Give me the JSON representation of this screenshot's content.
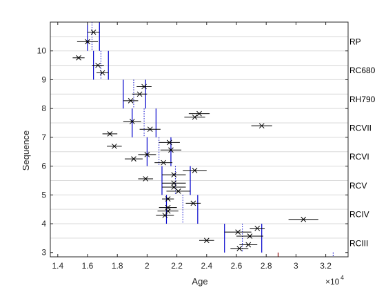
{
  "chart_data": {
    "type": "scatter",
    "xlabel": "Age",
    "ylabel": "Sequence",
    "x_multiplier_label": "×10",
    "x_multiplier_exp": "4",
    "xlim": [
      1.35,
      3.35
    ],
    "ylim": [
      2.85,
      11.0
    ],
    "x_ticks": [
      1.4,
      1.6,
      1.8,
      2.0,
      2.2,
      2.4,
      2.6,
      2.8,
      3.0,
      3.2
    ],
    "x_tick_labels": [
      "1.4",
      "1.6",
      "1.8",
      "2",
      "2.2",
      "2.4",
      "2.6",
      "2.8",
      "3",
      "3.2"
    ],
    "y_ticks": [
      3,
      4,
      5,
      6,
      7,
      8,
      9,
      10
    ],
    "y_tick_labels": [
      "3",
      "4",
      "5",
      "6",
      "7",
      "8",
      "9",
      "10"
    ],
    "grid": "horizontal",
    "sequences": [
      {
        "name": "RP",
        "y": 10.32,
        "boundary": 11.0,
        "lines_solid": [
          1.6,
          1.68
        ],
        "lines_dotted": [
          1.63
        ]
      },
      {
        "name": "RC680",
        "y": 9.32,
        "boundary": 10.0,
        "lines_solid": [
          1.64,
          1.74
        ],
        "lines_dotted": [
          1.69
        ]
      },
      {
        "name": "RH790",
        "y": 8.32,
        "boundary": 9.0,
        "lines_solid": [
          1.84,
          1.99
        ],
        "lines_dotted": [
          1.91
        ]
      },
      {
        "name": "RCVII",
        "y": 7.32,
        "boundary": 8.0,
        "lines_solid": [
          1.9,
          2.06
        ],
        "lines_dotted": [
          1.98
        ]
      },
      {
        "name": "RCVI",
        "y": 6.32,
        "boundary": 7.0,
        "lines_solid": [
          2.0,
          2.16
        ],
        "lines_dotted": [
          2.08
        ]
      },
      {
        "name": "RCV",
        "y": 5.32,
        "boundary": 6.0,
        "lines_solid": [
          2.1,
          2.29
        ],
        "lines_dotted": [
          2.19
        ]
      },
      {
        "name": "RCIV",
        "y": 4.32,
        "boundary": 5.0,
        "lines_solid": [
          2.13,
          2.34
        ],
        "lines_dotted": [
          2.24
        ]
      },
      {
        "name": "RCIII",
        "y": 3.32,
        "boundary": 4.0,
        "lines_solid": [
          2.52,
          2.77
        ],
        "lines_dotted": [
          2.64
        ]
      }
    ],
    "points": [
      {
        "x": 1.64,
        "y": 10.65,
        "err": 0.04
      },
      {
        "x": 1.6,
        "y": 10.32,
        "err": 0.07
      },
      {
        "x": 1.54,
        "y": 9.76,
        "err": 0.04
      },
      {
        "x": 1.67,
        "y": 9.5,
        "err": 0.04
      },
      {
        "x": 1.7,
        "y": 9.24,
        "err": 0.04
      },
      {
        "x": 1.98,
        "y": 8.76,
        "err": 0.05
      },
      {
        "x": 1.95,
        "y": 8.5,
        "err": 0.05
      },
      {
        "x": 1.89,
        "y": 8.27,
        "err": 0.05
      },
      {
        "x": 2.35,
        "y": 7.82,
        "err": 0.07
      },
      {
        "x": 2.32,
        "y": 7.7,
        "err": 0.07
      },
      {
        "x": 2.77,
        "y": 7.4,
        "err": 0.07
      },
      {
        "x": 2.02,
        "y": 7.28,
        "err": 0.07
      },
      {
        "x": 1.9,
        "y": 7.55,
        "err": 0.06
      },
      {
        "x": 1.75,
        "y": 7.12,
        "err": 0.05
      },
      {
        "x": 2.15,
        "y": 6.82,
        "err": 0.07
      },
      {
        "x": 1.78,
        "y": 6.69,
        "err": 0.05
      },
      {
        "x": 2.16,
        "y": 6.56,
        "err": 0.07
      },
      {
        "x": 2.0,
        "y": 6.4,
        "err": 0.06
      },
      {
        "x": 1.91,
        "y": 6.25,
        "err": 0.06
      },
      {
        "x": 2.11,
        "y": 6.12,
        "err": 0.06
      },
      {
        "x": 2.32,
        "y": 5.85,
        "err": 0.08
      },
      {
        "x": 2.18,
        "y": 5.7,
        "err": 0.08
      },
      {
        "x": 1.99,
        "y": 5.56,
        "err": 0.05
      },
      {
        "x": 2.18,
        "y": 5.41,
        "err": 0.08
      },
      {
        "x": 2.18,
        "y": 5.27,
        "err": 0.08
      },
      {
        "x": 2.21,
        "y": 5.13,
        "err": 0.08
      },
      {
        "x": 2.14,
        "y": 4.86,
        "err": 0.04
      },
      {
        "x": 2.31,
        "y": 4.71,
        "err": 0.05
      },
      {
        "x": 2.14,
        "y": 4.56,
        "err": 0.06
      },
      {
        "x": 2.14,
        "y": 4.44,
        "err": 0.07
      },
      {
        "x": 2.12,
        "y": 4.29,
        "err": 0.06
      },
      {
        "x": 3.05,
        "y": 4.15,
        "err": 0.1
      },
      {
        "x": 2.74,
        "y": 3.84,
        "err": 0.05
      },
      {
        "x": 2.61,
        "y": 3.71,
        "err": 0.09
      },
      {
        "x": 2.69,
        "y": 3.57,
        "err": 0.09
      },
      {
        "x": 2.4,
        "y": 3.42,
        "err": 0.05
      },
      {
        "x": 2.68,
        "y": 3.27,
        "err": 0.06
      },
      {
        "x": 2.62,
        "y": 3.14,
        "err": 0.06
      }
    ],
    "extra_lines": [
      {
        "x": 2.88,
        "style": "solid",
        "color": "#8b0000"
      },
      {
        "x": 3.25,
        "style": "dotted",
        "color": "#0000cc"
      }
    ],
    "colors": {
      "solid": "#0000cc",
      "dotted": "#0000cc",
      "points": "#000000",
      "axes": "#262626",
      "grid": "#d9d9d9"
    }
  }
}
